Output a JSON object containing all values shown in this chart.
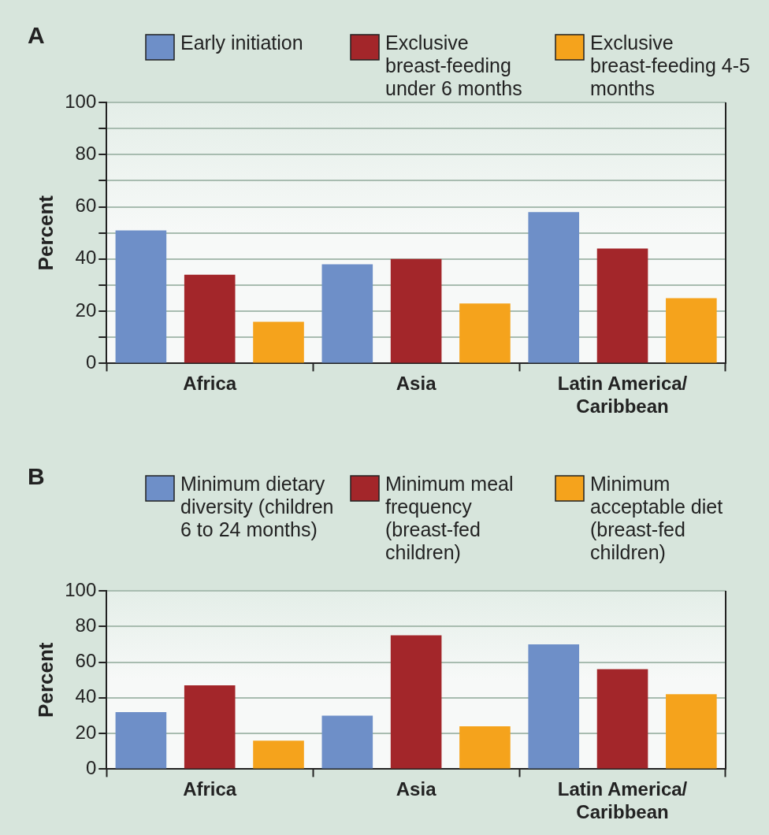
{
  "chart_data": [
    {
      "type": "bar",
      "title": "A",
      "ylabel": "Percent",
      "categories": [
        "Africa",
        "Asia",
        "Latin America/Caribbean"
      ],
      "series": [
        {
          "name": "Early initiation",
          "color": "#6e8fc8",
          "values": [
            51,
            38,
            58
          ]
        },
        {
          "name": "Exclusive breast-feeding under 6 months",
          "color": "#a3262a",
          "values": [
            34,
            40,
            44
          ]
        },
        {
          "name": "Exclusive breast-feeding 4-5 months",
          "color": "#f5a31c",
          "values": [
            16,
            23,
            25
          ]
        }
      ],
      "ylim": [
        0,
        100
      ],
      "yticks": [
        0,
        {
          "value": 10,
          "label": null
        },
        20,
        {
          "value": 30,
          "label": null
        },
        40,
        {
          "value": 50,
          "label": null
        },
        60,
        {
          "value": 70,
          "label": null
        },
        80,
        {
          "value": 90,
          "label": null
        },
        100
      ],
      "grid": "y",
      "legend": "top"
    },
    {
      "type": "bar",
      "title": "B",
      "ylabel": "Percent",
      "categories": [
        "Africa",
        "Asia",
        "Latin America/Caribbean"
      ],
      "series": [
        {
          "name": "Minimum dietary diversity (children 6 to 24 months)",
          "color": "#6e8fc8",
          "values": [
            32,
            30,
            70
          ]
        },
        {
          "name": "Minimum meal frequency (breast-fed children)",
          "color": "#a3262a",
          "values": [
            47,
            75,
            56
          ]
        },
        {
          "name": "Minimum acceptable diet (breast-fed children)",
          "color": "#f5a31c",
          "values": [
            16,
            24,
            42
          ]
        }
      ],
      "ylim": [
        0,
        100
      ],
      "yticks": [
        0,
        20,
        40,
        60,
        80,
        100
      ],
      "grid": "y",
      "legend": "top"
    }
  ]
}
